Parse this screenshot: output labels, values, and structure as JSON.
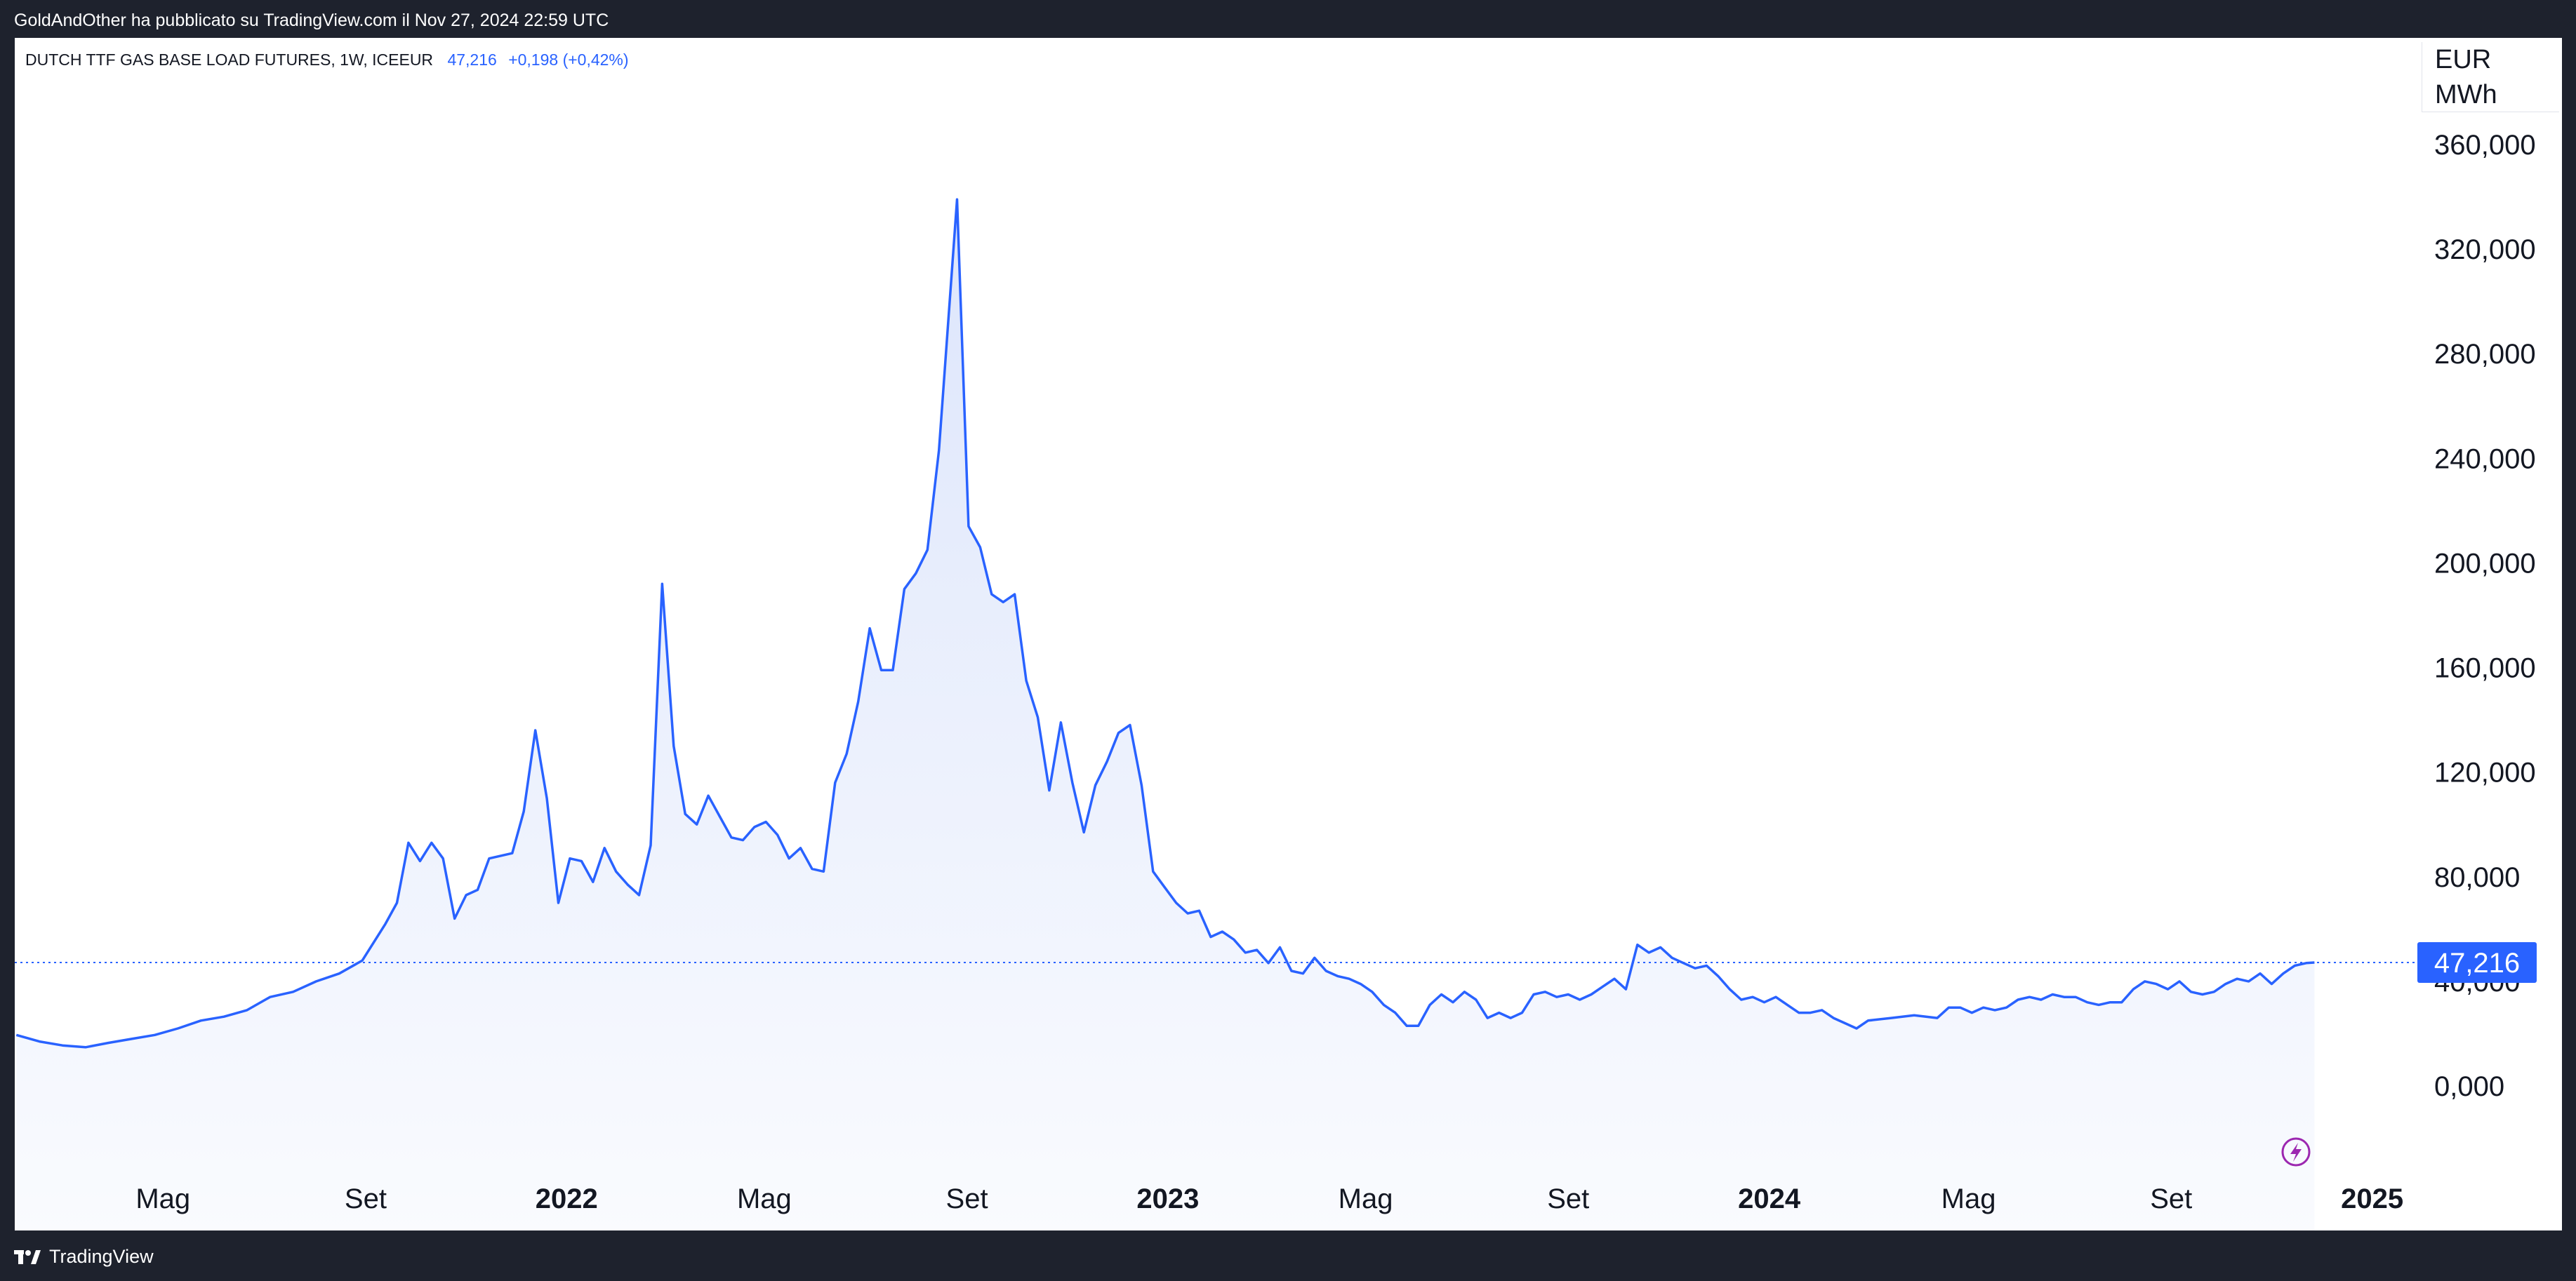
{
  "header": {
    "publisher": "GoldAndOther ha pubblicato su TradingView.com il Nov 27, 2024 22:59 UTC"
  },
  "legend": {
    "symbol": "DUTCH TTF GAS BASE LOAD FUTURES, 1W, ICEEUR",
    "last": "47,216",
    "change": "+0,198 (+0,42%)"
  },
  "unit_label": "EUR\nMWh",
  "unit_line1": "EUR",
  "unit_line2": "MWh",
  "footer": {
    "brand": "TradingView"
  },
  "colors": {
    "line": "#2962ff",
    "fill_top": "#dbe4fb",
    "price_tag": "#2962ff",
    "lightning": "#9c27b0"
  },
  "icons": {
    "brand": "tradingview-logo-icon",
    "realtime": "lightning-icon"
  },
  "chart_data": {
    "type": "area",
    "title": "DUTCH TTF GAS BASE LOAD FUTURES, 1W, ICEEUR",
    "ylabel": "EUR MWh",
    "ylim": [
      -20,
      385
    ],
    "y_ticks": [
      0,
      40,
      80,
      120,
      160,
      200,
      240,
      280,
      320,
      360
    ],
    "y_tick_labels": [
      "0,000",
      "40,000",
      "80,000",
      "120,000",
      "160,000",
      "200,000",
      "240,000",
      "280,000",
      "320,000",
      "360,000"
    ],
    "x_ticks": [
      {
        "label": "Mag",
        "date": "2021-05-01",
        "year": false
      },
      {
        "label": "Set",
        "date": "2021-09-01",
        "year": false
      },
      {
        "label": "2022",
        "date": "2022-01-01",
        "year": true
      },
      {
        "label": "Mag",
        "date": "2022-05-01",
        "year": false
      },
      {
        "label": "Set",
        "date": "2022-09-01",
        "year": false
      },
      {
        "label": "2023",
        "date": "2023-01-01",
        "year": true
      },
      {
        "label": "Mag",
        "date": "2023-05-01",
        "year": false
      },
      {
        "label": "Set",
        "date": "2023-09-01",
        "year": false
      },
      {
        "label": "2024",
        "date": "2024-01-01",
        "year": true
      },
      {
        "label": "Mag",
        "date": "2024-05-01",
        "year": false
      },
      {
        "label": "Set",
        "date": "2024-09-01",
        "year": false
      },
      {
        "label": "2025",
        "date": "2025-01-01",
        "year": true
      }
    ],
    "xlim": [
      "2021-01-31",
      "2025-01-31"
    ],
    "last_price": 47.216,
    "last_price_label": "47,216",
    "series": [
      {
        "values": [
          [
            "2021-02-01",
            19.5
          ],
          [
            "2021-02-15",
            17
          ],
          [
            "2021-03-01",
            15.5
          ],
          [
            "2021-03-15",
            14.8
          ],
          [
            "2021-03-29",
            16.5
          ],
          [
            "2021-04-12",
            18
          ],
          [
            "2021-04-26",
            19.5
          ],
          [
            "2021-05-10",
            22
          ],
          [
            "2021-05-24",
            25
          ],
          [
            "2021-06-07",
            26.5
          ],
          [
            "2021-06-21",
            29
          ],
          [
            "2021-07-05",
            34
          ],
          [
            "2021-07-19",
            36
          ],
          [
            "2021-08-02",
            40
          ],
          [
            "2021-08-16",
            43
          ],
          [
            "2021-08-30",
            48
          ],
          [
            "2021-09-13",
            62
          ],
          [
            "2021-09-20",
            70
          ],
          [
            "2021-09-27",
            93
          ],
          [
            "2021-10-04",
            86
          ],
          [
            "2021-10-11",
            93
          ],
          [
            "2021-10-18",
            87
          ],
          [
            "2021-10-25",
            64
          ],
          [
            "2021-11-01",
            73
          ],
          [
            "2021-11-08",
            75
          ],
          [
            "2021-11-15",
            87
          ],
          [
            "2021-11-29",
            89
          ],
          [
            "2021-12-06",
            105
          ],
          [
            "2021-12-13",
            136
          ],
          [
            "2021-12-20",
            110
          ],
          [
            "2021-12-27",
            70
          ],
          [
            "2022-01-03",
            87
          ],
          [
            "2022-01-10",
            86
          ],
          [
            "2022-01-17",
            78
          ],
          [
            "2022-01-24",
            91
          ],
          [
            "2022-01-31",
            82
          ],
          [
            "2022-02-07",
            77
          ],
          [
            "2022-02-14",
            73
          ],
          [
            "2022-02-21",
            92
          ],
          [
            "2022-02-28",
            192
          ],
          [
            "2022-03-07",
            130
          ],
          [
            "2022-03-14",
            104
          ],
          [
            "2022-03-21",
            100
          ],
          [
            "2022-03-28",
            111
          ],
          [
            "2022-04-04",
            103
          ],
          [
            "2022-04-11",
            95
          ],
          [
            "2022-04-18",
            94
          ],
          [
            "2022-04-25",
            99
          ],
          [
            "2022-05-02",
            101
          ],
          [
            "2022-05-09",
            96
          ],
          [
            "2022-05-16",
            87
          ],
          [
            "2022-05-23",
            91
          ],
          [
            "2022-05-30",
            83
          ],
          [
            "2022-06-06",
            82
          ],
          [
            "2022-06-13",
            116
          ],
          [
            "2022-06-20",
            127
          ],
          [
            "2022-06-27",
            147
          ],
          [
            "2022-07-04",
            175
          ],
          [
            "2022-07-11",
            159
          ],
          [
            "2022-07-18",
            159
          ],
          [
            "2022-07-25",
            190
          ],
          [
            "2022-08-01",
            196
          ],
          [
            "2022-08-08",
            205
          ],
          [
            "2022-08-15",
            243
          ],
          [
            "2022-08-26",
            339
          ],
          [
            "2022-09-02",
            214
          ],
          [
            "2022-09-09",
            206
          ],
          [
            "2022-09-16",
            188
          ],
          [
            "2022-09-23",
            185
          ],
          [
            "2022-09-30",
            188
          ],
          [
            "2022-10-07",
            155
          ],
          [
            "2022-10-14",
            141
          ],
          [
            "2022-10-21",
            113
          ],
          [
            "2022-10-28",
            139
          ],
          [
            "2022-11-04",
            116
          ],
          [
            "2022-11-11",
            97
          ],
          [
            "2022-11-18",
            115
          ],
          [
            "2022-11-25",
            124
          ],
          [
            "2022-12-02",
            135
          ],
          [
            "2022-12-09",
            138
          ],
          [
            "2022-12-16",
            115
          ],
          [
            "2022-12-23",
            82
          ],
          [
            "2022-12-30",
            76
          ],
          [
            "2023-01-06",
            70
          ],
          [
            "2023-01-13",
            66
          ],
          [
            "2023-01-20",
            67
          ],
          [
            "2023-01-27",
            57
          ],
          [
            "2023-02-03",
            59
          ],
          [
            "2023-02-10",
            56
          ],
          [
            "2023-02-17",
            51
          ],
          [
            "2023-02-24",
            52
          ],
          [
            "2023-03-03",
            47
          ],
          [
            "2023-03-10",
            53
          ],
          [
            "2023-03-17",
            44
          ],
          [
            "2023-03-24",
            43
          ],
          [
            "2023-03-31",
            49
          ],
          [
            "2023-04-07",
            44
          ],
          [
            "2023-04-14",
            42
          ],
          [
            "2023-04-21",
            41
          ],
          [
            "2023-04-28",
            39
          ],
          [
            "2023-05-05",
            36
          ],
          [
            "2023-05-12",
            31
          ],
          [
            "2023-05-19",
            28
          ],
          [
            "2023-05-26",
            23
          ],
          [
            "2023-06-02",
            23
          ],
          [
            "2023-06-09",
            31
          ],
          [
            "2023-06-16",
            35
          ],
          [
            "2023-06-23",
            32
          ],
          [
            "2023-06-30",
            36
          ],
          [
            "2023-07-07",
            33
          ],
          [
            "2023-07-14",
            26
          ],
          [
            "2023-07-21",
            28
          ],
          [
            "2023-07-28",
            26
          ],
          [
            "2023-08-04",
            28
          ],
          [
            "2023-08-11",
            35
          ],
          [
            "2023-08-18",
            36
          ],
          [
            "2023-08-25",
            34
          ],
          [
            "2023-09-01",
            35
          ],
          [
            "2023-09-08",
            33
          ],
          [
            "2023-09-15",
            35
          ],
          [
            "2023-09-22",
            38
          ],
          [
            "2023-09-29",
            41
          ],
          [
            "2023-10-06",
            37
          ],
          [
            "2023-10-13",
            54
          ],
          [
            "2023-10-20",
            51
          ],
          [
            "2023-10-27",
            53
          ],
          [
            "2023-11-03",
            49
          ],
          [
            "2023-11-10",
            47
          ],
          [
            "2023-11-17",
            45
          ],
          [
            "2023-11-24",
            46
          ],
          [
            "2023-12-01",
            42
          ],
          [
            "2023-12-08",
            37
          ],
          [
            "2023-12-15",
            33
          ],
          [
            "2023-12-22",
            34
          ],
          [
            "2023-12-29",
            32
          ],
          [
            "2024-01-05",
            34
          ],
          [
            "2024-01-12",
            31
          ],
          [
            "2024-01-19",
            28
          ],
          [
            "2024-01-26",
            28
          ],
          [
            "2024-02-02",
            29
          ],
          [
            "2024-02-09",
            26
          ],
          [
            "2024-02-16",
            24
          ],
          [
            "2024-02-23",
            22
          ],
          [
            "2024-03-01",
            25
          ],
          [
            "2024-03-15",
            26
          ],
          [
            "2024-03-29",
            27
          ],
          [
            "2024-04-12",
            26
          ],
          [
            "2024-04-19",
            30
          ],
          [
            "2024-04-26",
            30
          ],
          [
            "2024-05-03",
            28
          ],
          [
            "2024-05-10",
            30
          ],
          [
            "2024-05-17",
            29
          ],
          [
            "2024-05-24",
            30
          ],
          [
            "2024-05-31",
            33
          ],
          [
            "2024-06-07",
            34
          ],
          [
            "2024-06-14",
            33
          ],
          [
            "2024-06-21",
            35
          ],
          [
            "2024-06-28",
            34
          ],
          [
            "2024-07-05",
            34
          ],
          [
            "2024-07-12",
            32
          ],
          [
            "2024-07-19",
            31
          ],
          [
            "2024-07-26",
            32
          ],
          [
            "2024-08-02",
            32
          ],
          [
            "2024-08-09",
            37
          ],
          [
            "2024-08-16",
            40
          ],
          [
            "2024-08-23",
            39
          ],
          [
            "2024-08-30",
            37
          ],
          [
            "2024-09-06",
            40
          ],
          [
            "2024-09-13",
            36
          ],
          [
            "2024-09-20",
            35
          ],
          [
            "2024-09-27",
            36
          ],
          [
            "2024-10-04",
            39
          ],
          [
            "2024-10-11",
            41
          ],
          [
            "2024-10-18",
            40
          ],
          [
            "2024-10-25",
            43
          ],
          [
            "2024-11-01",
            39
          ],
          [
            "2024-11-08",
            43
          ],
          [
            "2024-11-15",
            46
          ],
          [
            "2024-11-22",
            47
          ],
          [
            "2024-11-27",
            47.216
          ]
        ]
      }
    ]
  }
}
